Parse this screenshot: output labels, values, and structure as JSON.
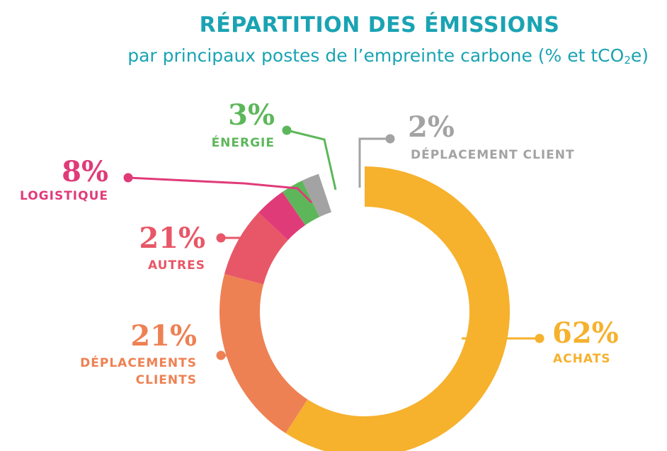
{
  "title": "RÉPARTITION DES ÉMISSIONS",
  "subtitle": {
    "before": "par principaux postes de l’empreinte carbone (% et tCO",
    "sub": "2",
    "after": "e)"
  },
  "colors": {
    "title": "#1aa3b3",
    "achats": "#f6b12d",
    "deplacements_clients": "#ee8153",
    "autres": "#e85767",
    "logistique": "#e03b79",
    "energie": "#5db75a",
    "deplacement_client": "#a3a3a3"
  },
  "chart_data": {
    "type": "pie",
    "donut": true,
    "title": "RÉPARTITION DES ÉMISSIONS",
    "subtitle": "par principaux postes de l’empreinte carbone (% et tCO2e)",
    "slices": [
      {
        "label": "ACHATS",
        "value": 62,
        "value_label": "62%",
        "color": "#f6b12d"
      },
      {
        "label": "DÉPLACEMENTS CLIENTS",
        "value": 21,
        "value_label": "21%",
        "color": "#ee8153"
      },
      {
        "label": "AUTRES",
        "value": 21,
        "value_label": "21%",
        "color": "#e85767"
      },
      {
        "label": "LOGISTIQUE",
        "value": 8,
        "value_label": "8%",
        "color": "#e03b79"
      },
      {
        "label": "ÉNERGIE",
        "value": 3,
        "value_label": "3%",
        "color": "#5db75a"
      },
      {
        "label": "DÉPLACEMENT CLIENT",
        "value": 2,
        "value_label": "2%",
        "color": "#a3a3a3"
      }
    ]
  }
}
